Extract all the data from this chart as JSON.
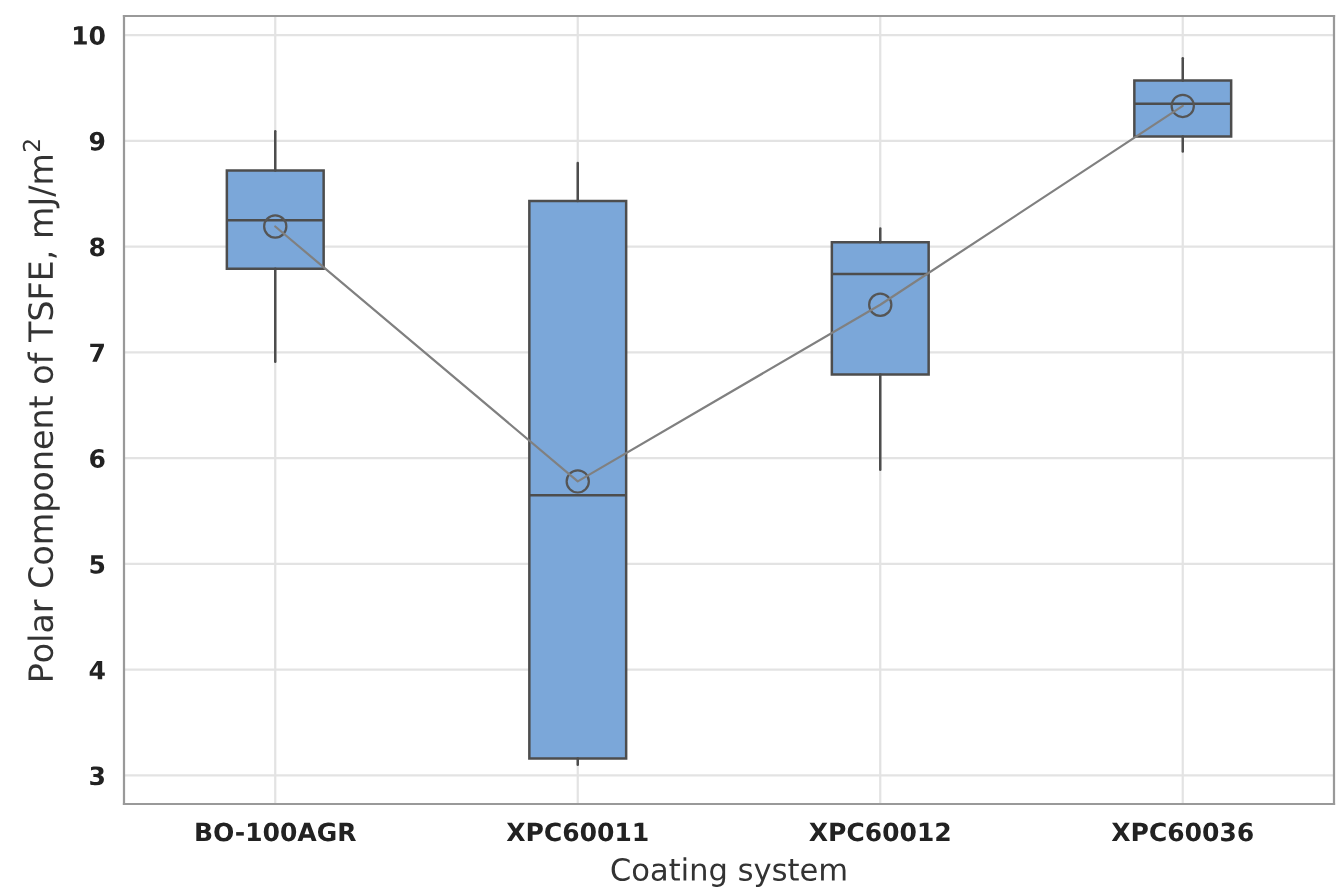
{
  "chart_data": {
    "type": "box",
    "xlabel": "Coating system",
    "ylabel": "Polar Component of TSFE, mJ/m$^{2}$",
    "categories": [
      "BO-100AGR",
      "XPC60011",
      "XPC60012",
      "XPC60036"
    ],
    "color": "#7ba7d9",
    "boxes": [
      {
        "low": 6.91,
        "q1": 7.79,
        "median": 8.25,
        "q3": 8.72,
        "high": 9.09,
        "mean": 8.19
      },
      {
        "low": 3.1,
        "q1": 3.16,
        "median": 5.65,
        "q3": 8.43,
        "high": 8.79,
        "mean": 5.78
      },
      {
        "low": 5.89,
        "q1": 6.79,
        "median": 7.74,
        "q3": 8.04,
        "high": 8.17,
        "mean": 7.45
      },
      {
        "low": 8.9,
        "q1": 9.04,
        "median": 9.35,
        "q3": 9.57,
        "high": 9.78,
        "mean": 9.33
      }
    ],
    "series": [
      {
        "type": "line",
        "color": "#808080",
        "values": [
          8.19,
          5.78,
          7.45,
          9.33
        ],
        "marker": "none"
      }
    ],
    "ylim": [
      2.73,
      10.18
    ],
    "yticks": [
      3,
      4,
      5,
      6,
      7,
      8,
      9,
      10
    ],
    "grid": true,
    "legend": false
  }
}
